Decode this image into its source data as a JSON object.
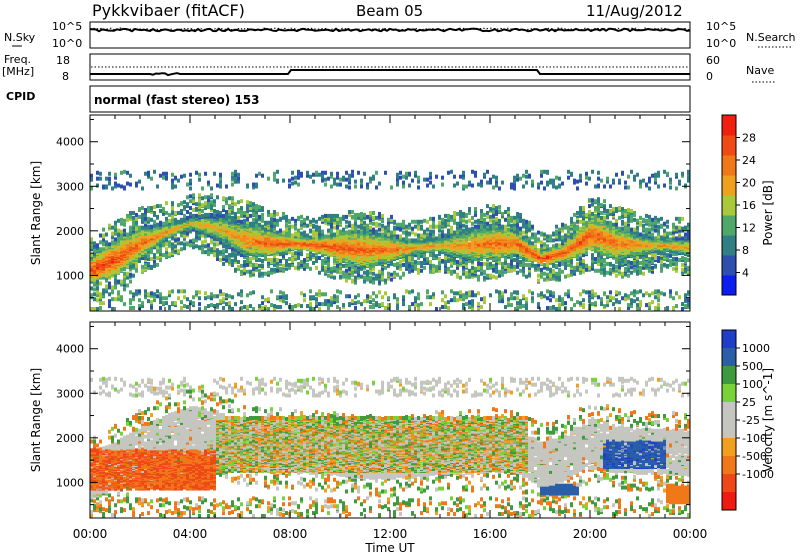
{
  "header": {
    "station": "Pykkvibaer (fitACF)",
    "beam": "Beam 05",
    "date": "11/Aug/2012"
  },
  "noise_panel": {
    "left_label": "N.Sky",
    "right_label": "N.Search",
    "left_ticks": [
      "10^5",
      "10^0"
    ],
    "right_ticks": [
      "10^5",
      "10^0"
    ]
  },
  "freq_panel": {
    "left_label_1": "Freq.",
    "left_label_2": "[MHz]",
    "right_label": "Nave",
    "left_ticks": [
      "18",
      "8"
    ],
    "right_ticks": [
      "60",
      "0"
    ]
  },
  "cpid_panel": {
    "label": "CPID",
    "text": "normal (fast stereo) 153"
  },
  "colors": {
    "power_scale": [
      "#0a1ef0",
      "#2c4fb0",
      "#2f7f84",
      "#4fa86a",
      "#a9c83a",
      "#f0a020",
      "#f07818",
      "#ef4a14",
      "#ef2010"
    ],
    "velocity_scale": [
      "#1e3ec8",
      "#2a5fa8",
      "#3e9a3e",
      "#7ad23a",
      "#c6c6c0",
      "#c6c6c0",
      "#f0a020",
      "#f07818",
      "#ef4818",
      "#ef1a10"
    ]
  },
  "chart_data": [
    {
      "type": "heatmap",
      "title": "",
      "xlabel": "",
      "ylabel": "Slant Range [km]",
      "x_ticks": [
        "00:00",
        "04:00",
        "08:00",
        "12:00",
        "16:00",
        "20:00",
        "00:00"
      ],
      "xlim_hours": [
        0,
        24
      ],
      "y_ticks": [
        1000,
        2000,
        3000,
        4000
      ],
      "ylim": [
        200,
        4600
      ],
      "colorbar": {
        "label": "Power [dB]",
        "ticks": [
          4,
          8,
          12,
          16,
          20,
          24,
          28
        ],
        "range": [
          0,
          32
        ]
      },
      "backscatter_band": [
        {
          "t": 0.0,
          "range": 1100,
          "power": 28
        },
        {
          "t": 1.0,
          "range": 1350,
          "power": 27
        },
        {
          "t": 2.0,
          "range": 1700,
          "power": 24
        },
        {
          "t": 3.0,
          "range": 1950,
          "power": 22
        },
        {
          "t": 4.0,
          "range": 2150,
          "power": 20
        },
        {
          "t": 5.0,
          "range": 2050,
          "power": 20
        },
        {
          "t": 6.0,
          "range": 1800,
          "power": 22
        },
        {
          "t": 7.0,
          "range": 1700,
          "power": 25
        },
        {
          "t": 8.0,
          "range": 1700,
          "power": 26
        },
        {
          "t": 9.0,
          "range": 1650,
          "power": 27
        },
        {
          "t": 10.0,
          "range": 1600,
          "power": 26
        },
        {
          "t": 11.0,
          "range": 1550,
          "power": 25
        },
        {
          "t": 12.0,
          "range": 1550,
          "power": 24
        },
        {
          "t": 13.0,
          "range": 1600,
          "power": 22
        },
        {
          "t": 14.0,
          "range": 1650,
          "power": 21
        },
        {
          "t": 15.0,
          "range": 1650,
          "power": 22
        },
        {
          "t": 16.0,
          "range": 1700,
          "power": 24
        },
        {
          "t": 17.0,
          "range": 1700,
          "power": 26
        },
        {
          "t": 18.0,
          "range": 1350,
          "power": 28
        },
        {
          "t": 19.0,
          "range": 1500,
          "power": 26
        },
        {
          "t": 20.0,
          "range": 1900,
          "power": 26
        },
        {
          "t": 21.0,
          "range": 1700,
          "power": 24
        },
        {
          "t": 22.0,
          "range": 1650,
          "power": 22
        },
        {
          "t": 23.0,
          "range": 1650,
          "power": 22
        },
        {
          "t": 24.0,
          "range": 1600,
          "power": 20
        }
      ]
    },
    {
      "type": "heatmap",
      "title": "",
      "xlabel": "Time UT",
      "ylabel": "Slant Range [km]",
      "x_ticks": [
        "00:00",
        "04:00",
        "08:00",
        "12:00",
        "16:00",
        "20:00",
        "00:00"
      ],
      "xlim_hours": [
        0,
        24
      ],
      "y_ticks": [
        1000,
        2000,
        3000,
        4000
      ],
      "ylim": [
        200,
        4600
      ],
      "colorbar": {
        "label": "Velocity [m s^-1]",
        "ticks": [
          "1000",
          "500",
          "100",
          "25",
          "-25",
          "-100",
          "-500",
          "-1000"
        ]
      },
      "velocity_regions": [
        {
          "t_start": 0.0,
          "t_end": 5.0,
          "range_low": 800,
          "range_high": 1700,
          "velocity": -300
        },
        {
          "t_start": 5.0,
          "t_end": 17.5,
          "range_low": 1200,
          "range_high": 2400,
          "velocity": 0
        },
        {
          "t_start": 18.0,
          "t_end": 19.5,
          "range_low": 700,
          "range_high": 900,
          "velocity": 400
        },
        {
          "t_start": 20.5,
          "t_end": 23.0,
          "range_low": 1300,
          "range_high": 1900,
          "velocity": 700
        },
        {
          "t_start": 23.0,
          "t_end": 24.0,
          "range_low": 500,
          "range_high": 900,
          "velocity": -200
        }
      ]
    }
  ]
}
